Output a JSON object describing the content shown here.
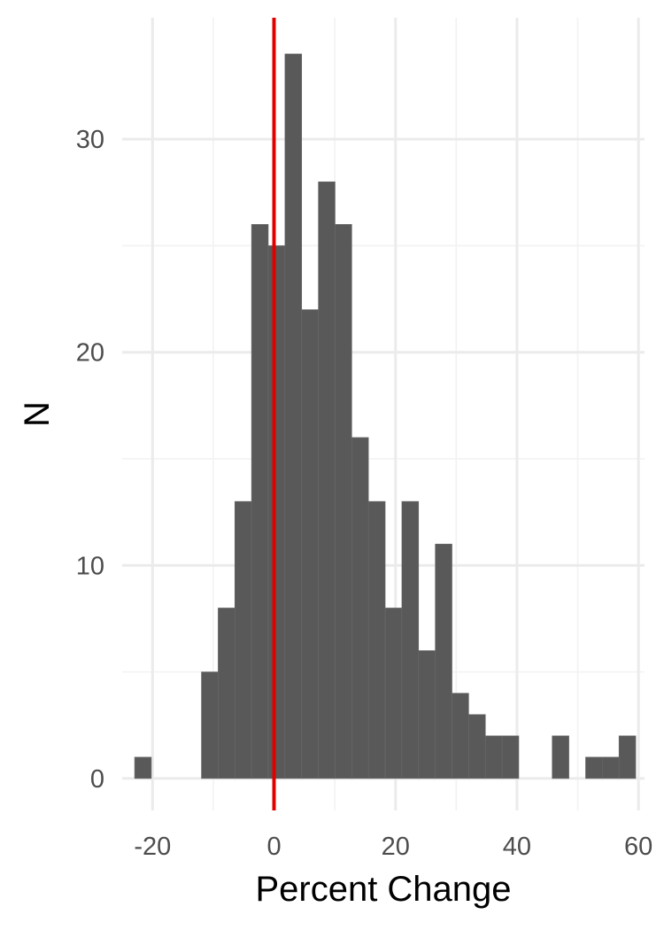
{
  "chart_data": {
    "type": "bar",
    "subtype": "histogram",
    "title": "",
    "xlabel": "Percent Change",
    "ylabel": "N",
    "xlim": [
      -25,
      61
    ],
    "ylim": [
      -1.5,
      35.7
    ],
    "x_ticks": [
      -20,
      0,
      20,
      40,
      60
    ],
    "y_ticks": [
      0,
      10,
      20,
      30
    ],
    "x_minor_ticks": [
      -10,
      10,
      30,
      50
    ],
    "y_minor_ticks": [
      5,
      15,
      25
    ],
    "grid": true,
    "legend": "none",
    "bin_width": 2.75,
    "bins": [
      {
        "x0": -22.95,
        "x1": -20.2,
        "count": 1
      },
      {
        "x0": -20.2,
        "x1": -17.45,
        "count": 0
      },
      {
        "x0": -17.45,
        "x1": -14.7,
        "count": 0
      },
      {
        "x0": -14.7,
        "x1": -11.95,
        "count": 0
      },
      {
        "x0": -11.95,
        "x1": -9.2,
        "count": 5
      },
      {
        "x0": -9.2,
        "x1": -6.45,
        "count": 8
      },
      {
        "x0": -6.45,
        "x1": -3.7,
        "count": 13
      },
      {
        "x0": -3.7,
        "x1": -0.95,
        "count": 26
      },
      {
        "x0": -0.95,
        "x1": 1.8,
        "count": 25
      },
      {
        "x0": 1.8,
        "x1": 4.55,
        "count": 34
      },
      {
        "x0": 4.55,
        "x1": 7.3,
        "count": 22
      },
      {
        "x0": 7.3,
        "x1": 10.05,
        "count": 28
      },
      {
        "x0": 10.05,
        "x1": 12.8,
        "count": 26
      },
      {
        "x0": 12.8,
        "x1": 15.55,
        "count": 16
      },
      {
        "x0": 15.55,
        "x1": 18.3,
        "count": 13
      },
      {
        "x0": 18.3,
        "x1": 21.05,
        "count": 8
      },
      {
        "x0": 21.05,
        "x1": 23.8,
        "count": 13
      },
      {
        "x0": 23.8,
        "x1": 26.55,
        "count": 6
      },
      {
        "x0": 26.55,
        "x1": 29.3,
        "count": 11
      },
      {
        "x0": 29.3,
        "x1": 32.05,
        "count": 4
      },
      {
        "x0": 32.05,
        "x1": 34.8,
        "count": 3
      },
      {
        "x0": 34.8,
        "x1": 37.55,
        "count": 2
      },
      {
        "x0": 37.55,
        "x1": 40.3,
        "count": 2
      },
      {
        "x0": 40.3,
        "x1": 43.05,
        "count": 0
      },
      {
        "x0": 43.05,
        "x1": 45.8,
        "count": 0
      },
      {
        "x0": 45.8,
        "x1": 48.55,
        "count": 2
      },
      {
        "x0": 48.55,
        "x1": 51.3,
        "count": 0
      },
      {
        "x0": 51.3,
        "x1": 54.05,
        "count": 1
      },
      {
        "x0": 54.05,
        "x1": 56.8,
        "count": 1
      },
      {
        "x0": 56.8,
        "x1": 59.55,
        "count": 2
      }
    ],
    "reference_line": {
      "x": 0,
      "color": "#e00000"
    },
    "colors": {
      "bar": "#595959",
      "reference": "#e00000",
      "grid": "#ebebeb"
    }
  }
}
